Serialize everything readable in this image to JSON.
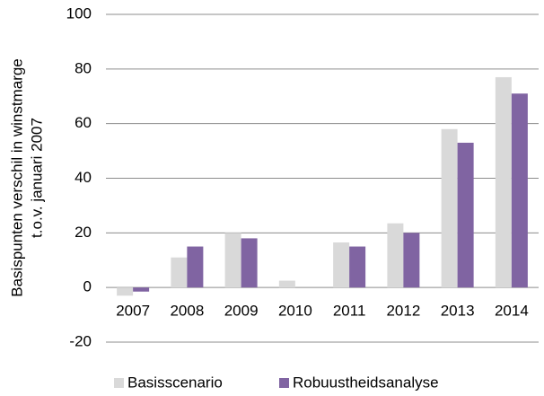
{
  "chart_data": {
    "type": "bar",
    "ylabel": [
      "Basispunten verschil in winstmarge",
      "t.o.v. januari 2007"
    ],
    "categories": [
      "2007",
      "2008",
      "2009",
      "2010",
      "2011",
      "2012",
      "2013",
      "2014"
    ],
    "series": [
      {
        "name": "Basisscenario",
        "color": "#d9d9d9",
        "values": [
          -3,
          11,
          20,
          2.5,
          16.5,
          23.5,
          58,
          77
        ]
      },
      {
        "name": "Robuustheidsanalyse",
        "color": "#8064a2",
        "values": [
          -1.5,
          15,
          18,
          0,
          15,
          20,
          53,
          71
        ]
      }
    ],
    "ylim": [
      -20,
      100
    ],
    "yticks": [
      -20,
      0,
      20,
      40,
      60,
      80,
      100
    ],
    "grid": true,
    "legend": "bottom"
  }
}
